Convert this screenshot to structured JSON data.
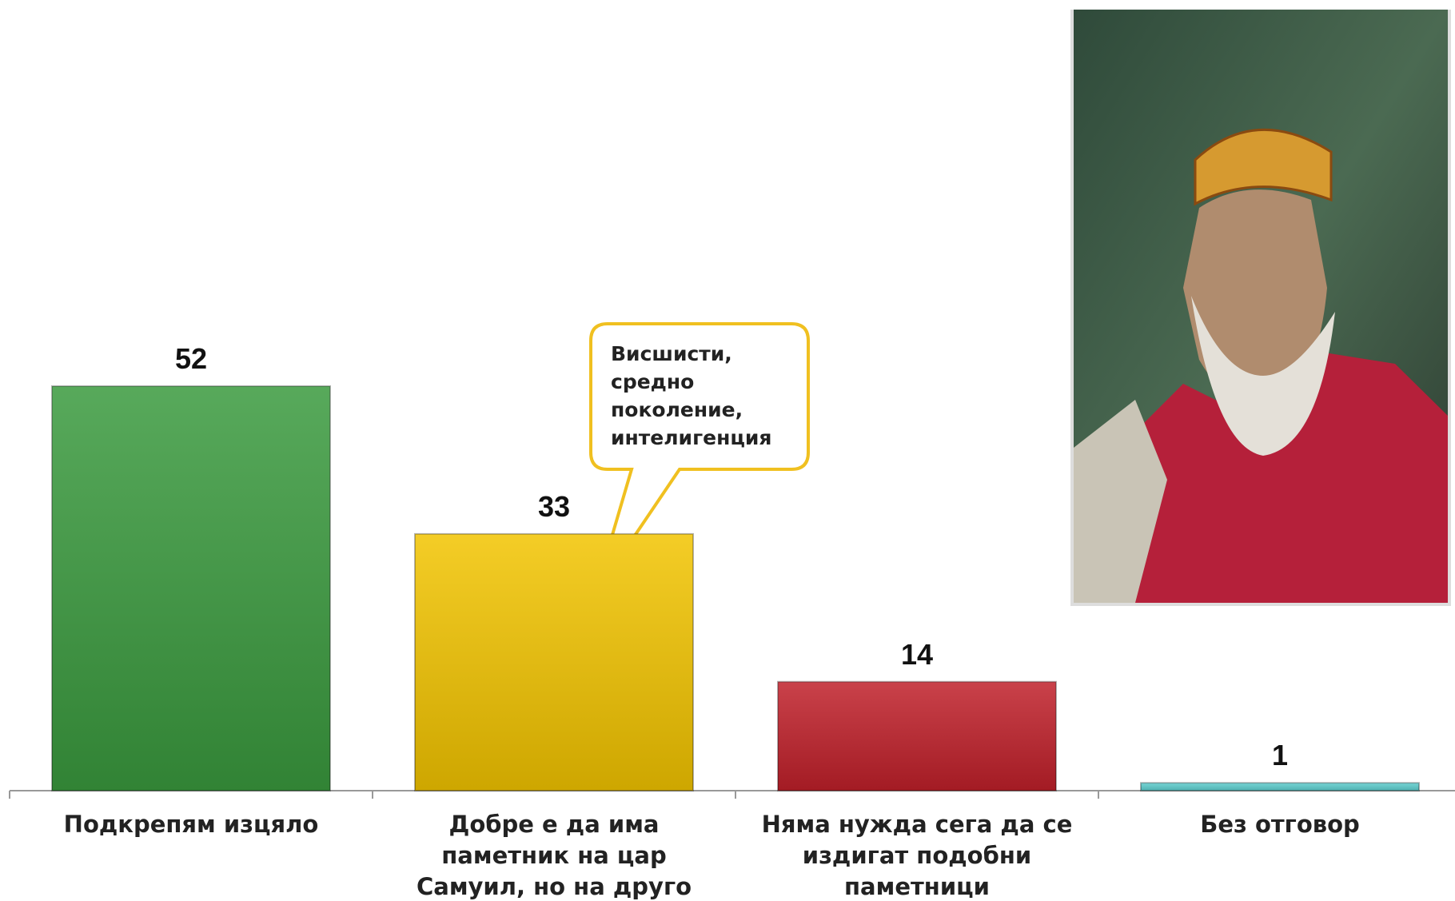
{
  "chart_data": {
    "type": "bar",
    "categories": [
      "Подкрепям изцяло",
      "Добре е да има паметник на цар Самуил, но на друго място",
      "Няма нужда сега да се издигат подобни паметници",
      "Без отговор"
    ],
    "values": [
      52,
      33,
      14,
      1
    ],
    "colors": [
      "#3a9a3e",
      "#f2c400",
      "#c0202a",
      "#5fcfd0"
    ],
    "annotation": "Висшисти, средно поколение, интелигенция"
  }
}
